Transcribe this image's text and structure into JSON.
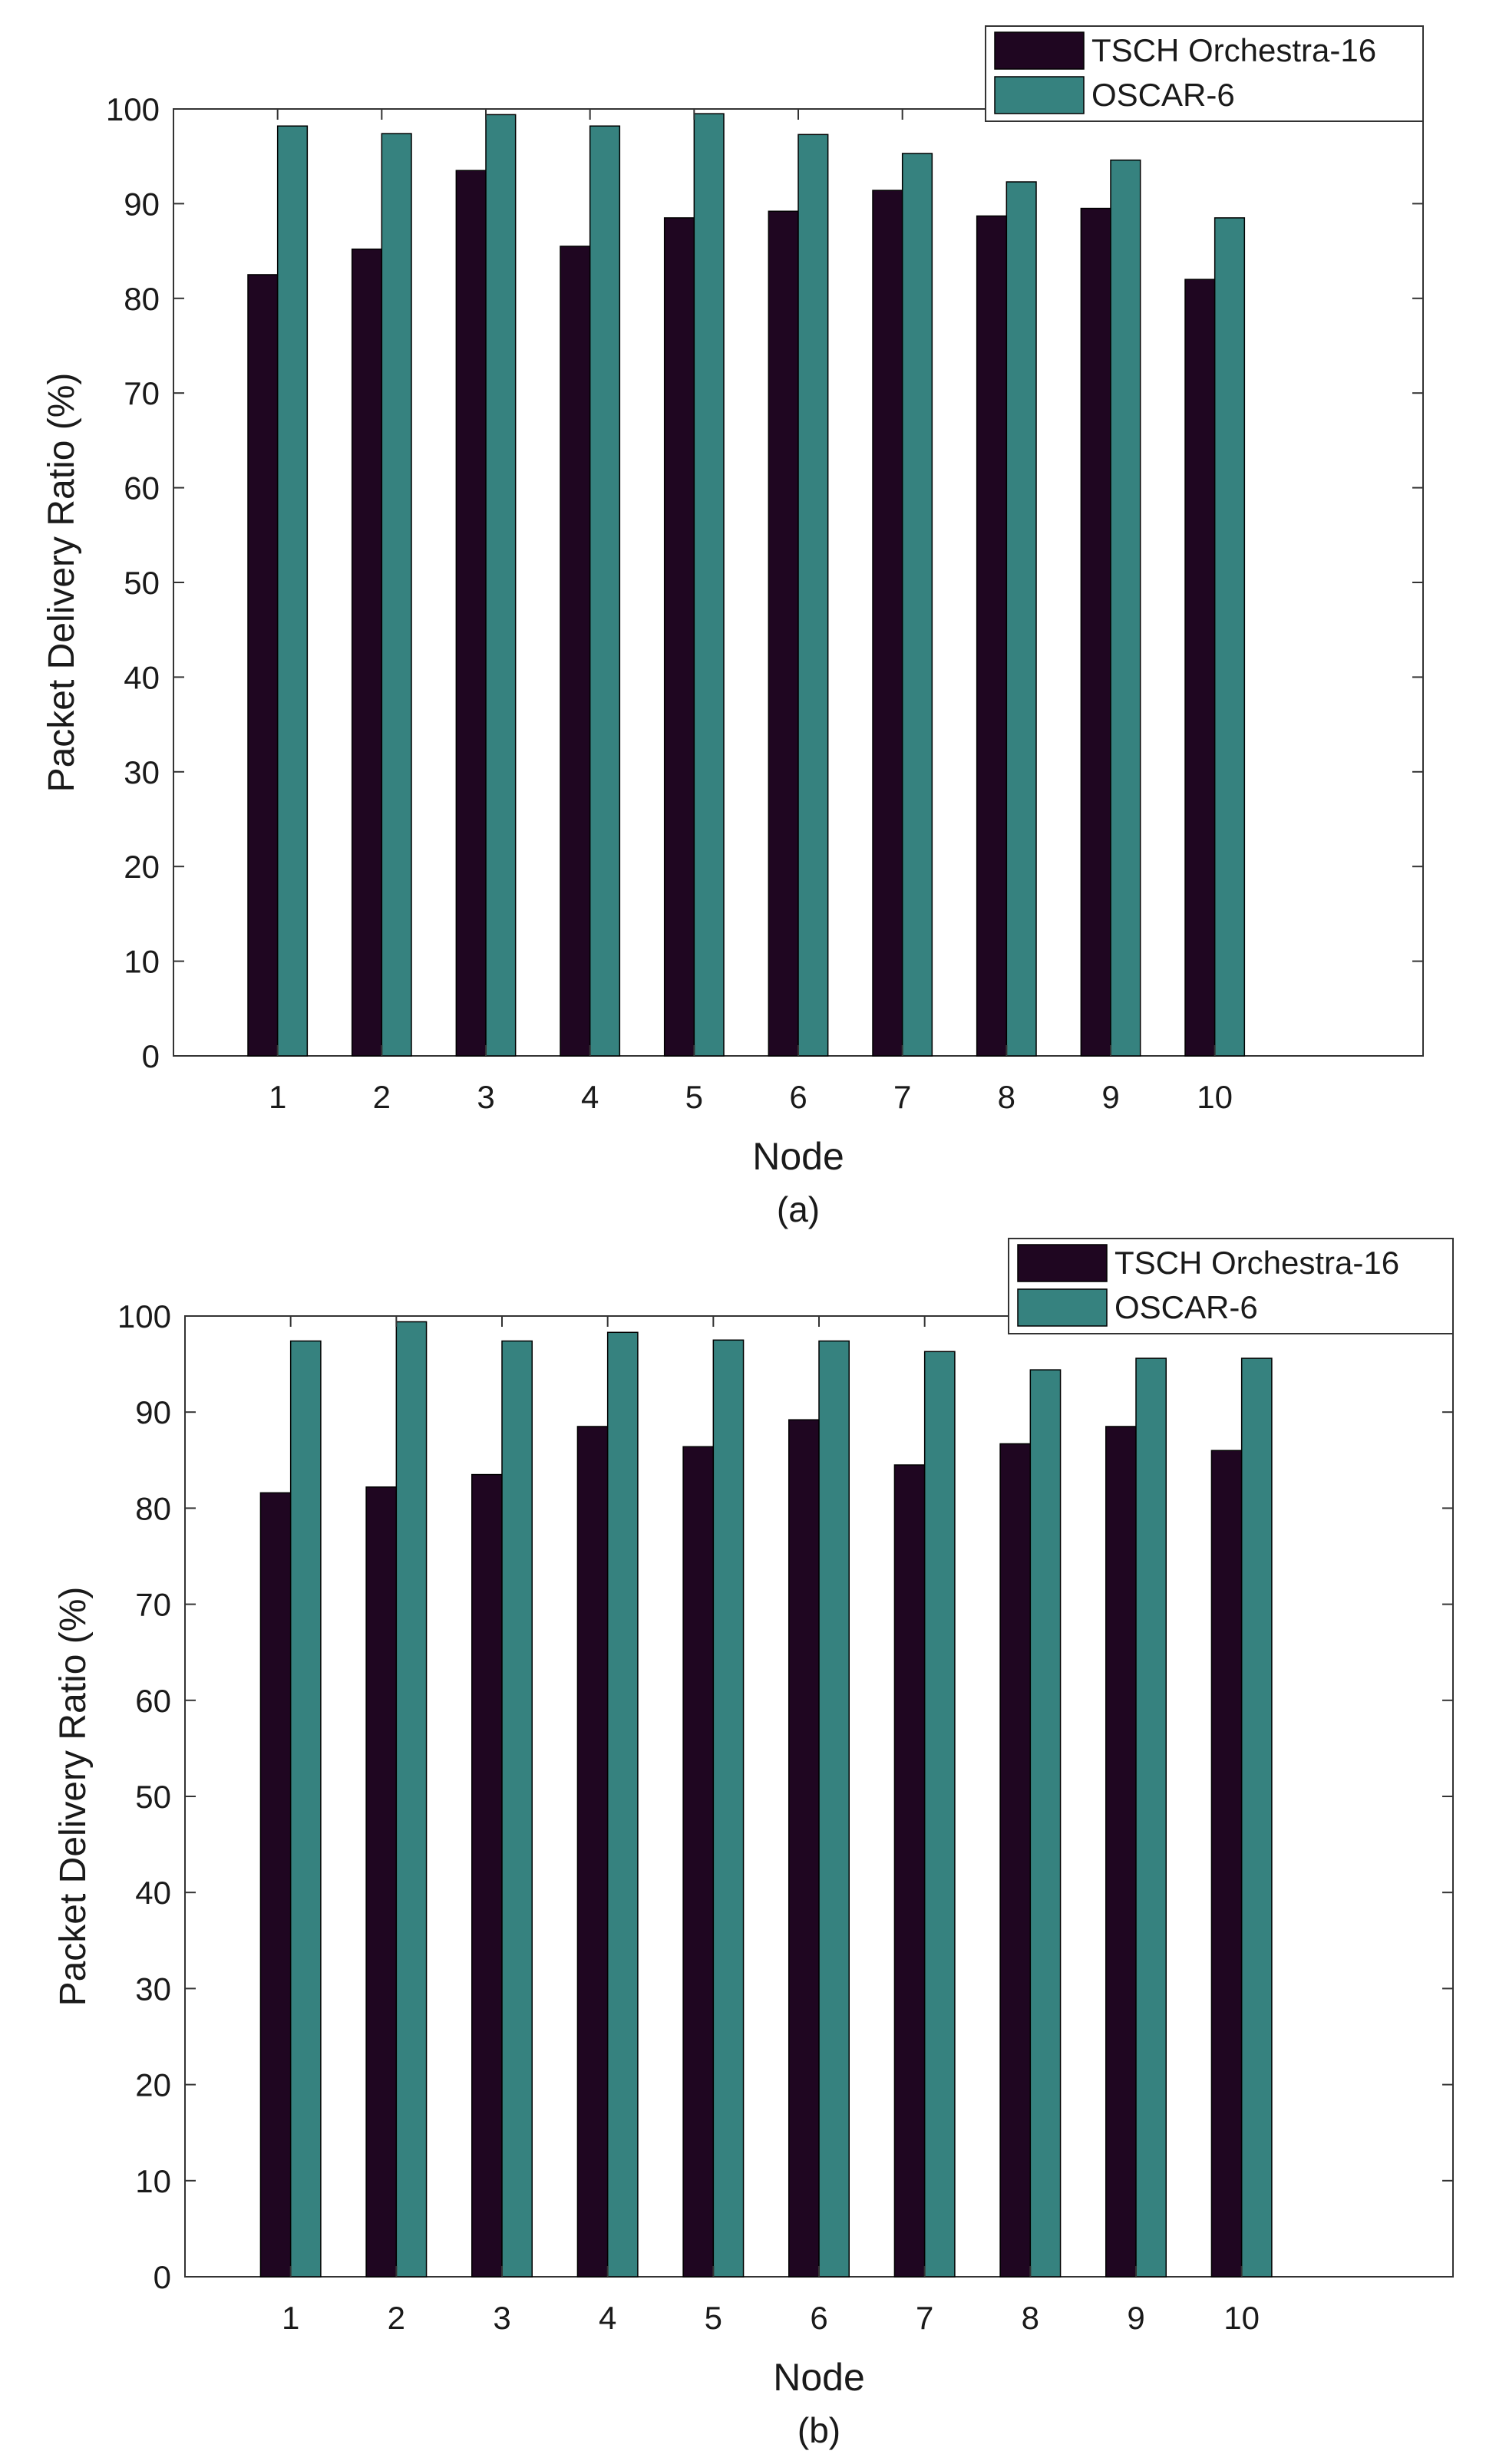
{
  "colors": {
    "series1": "#1f0621",
    "series2": "#36827f",
    "axis": "#333333",
    "text": "#1a1a1a",
    "background": "#ffffff"
  },
  "chart_data": [
    {
      "type": "bar",
      "panel_label": "(a)",
      "xlabel": "Node",
      "ylabel": "Packet Delivery Ratio (%)",
      "categories": [
        "1",
        "2",
        "3",
        "4",
        "5",
        "6",
        "7",
        "8",
        "9",
        "10"
      ],
      "series": [
        {
          "name": "TSCH Orchestra-16",
          "values": [
            82.5,
            85.2,
            93.5,
            85.5,
            88.5,
            89.2,
            91.4,
            88.7,
            89.5,
            82.0
          ]
        },
        {
          "name": "OSCAR-6",
          "values": [
            98.2,
            97.4,
            99.4,
            98.2,
            99.5,
            97.3,
            95.3,
            92.3,
            94.6,
            88.5
          ]
        }
      ],
      "ylim": [
        0,
        100
      ],
      "xlim": [
        0,
        12
      ],
      "yticks": [
        0,
        10,
        20,
        30,
        40,
        50,
        60,
        70,
        80,
        90,
        100
      ],
      "legend_position": "top-right",
      "grid": false
    },
    {
      "type": "bar",
      "panel_label": "(b)",
      "xlabel": "Node",
      "ylabel": "Packet Delivery Ratio (%)",
      "categories": [
        "1",
        "2",
        "3",
        "4",
        "5",
        "6",
        "7",
        "8",
        "9",
        "10"
      ],
      "series": [
        {
          "name": "TSCH Orchestra-16",
          "values": [
            81.6,
            82.2,
            83.5,
            88.5,
            86.4,
            89.2,
            84.5,
            86.7,
            88.5,
            86.0
          ]
        },
        {
          "name": "OSCAR-6",
          "values": [
            97.4,
            99.4,
            97.4,
            98.3,
            97.5,
            97.4,
            96.3,
            94.4,
            95.6,
            95.6
          ]
        }
      ],
      "ylim": [
        0,
        100
      ],
      "xlim": [
        0,
        12
      ],
      "yticks": [
        0,
        10,
        20,
        30,
        40,
        50,
        60,
        70,
        80,
        90,
        100
      ],
      "legend_position": "top-right",
      "grid": false
    }
  ]
}
